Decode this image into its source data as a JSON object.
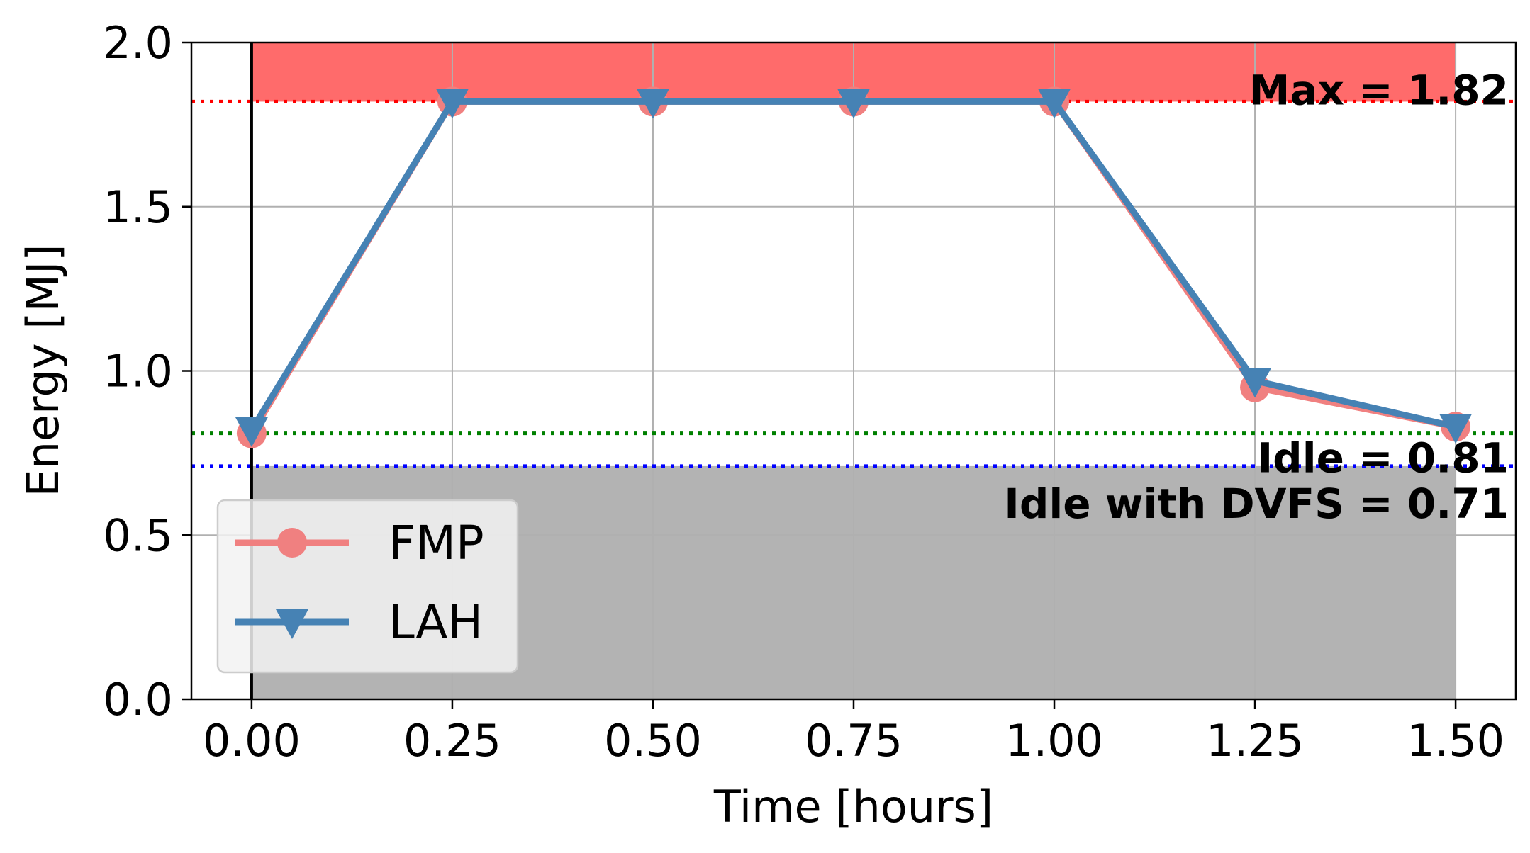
{
  "chart_data": {
    "type": "line",
    "title": "",
    "xlabel": "Time [hours]",
    "ylabel": "Energy [MJ]",
    "xlim": [
      -0.075,
      1.575
    ],
    "ylim": [
      0.0,
      2.0
    ],
    "xticks": [
      0.0,
      0.25,
      0.5,
      0.75,
      1.0,
      1.25,
      1.5
    ],
    "xtick_labels": [
      "0.00",
      "0.25",
      "0.50",
      "0.75",
      "1.00",
      "1.25",
      "1.50"
    ],
    "yticks": [
      0.0,
      0.5,
      1.0,
      1.5,
      2.0
    ],
    "ytick_labels": [
      "0.0",
      "0.5",
      "1.0",
      "1.5",
      "2.0"
    ],
    "grid": true,
    "legend_position": "lower-left",
    "x": [
      0.0,
      0.25,
      0.5,
      0.75,
      1.0,
      1.25,
      1.5
    ],
    "series": [
      {
        "name": "FMP",
        "values": [
          0.81,
          1.82,
          1.82,
          1.82,
          1.82,
          0.95,
          0.83
        ],
        "color": "#f08080",
        "marker": "circle"
      },
      {
        "name": "LAH",
        "values": [
          0.82,
          1.82,
          1.82,
          1.82,
          1.82,
          0.97,
          0.83
        ],
        "color": "#4682b4",
        "marker": "triangle-down"
      }
    ],
    "reference_lines": [
      {
        "label": "Max = 1.82",
        "value": 1.82,
        "color": "#ff0000",
        "style": "dotted"
      },
      {
        "label": "Idle = 0.81",
        "value": 0.81,
        "color": "#008000",
        "style": "dotted"
      },
      {
        "label": "Idle with DVFS = 0.71",
        "value": 0.71,
        "color": "#0000ff",
        "style": "dotted"
      }
    ],
    "shaded_regions": [
      {
        "x_range": [
          0.0,
          1.5
        ],
        "y_range": [
          1.82,
          2.0
        ],
        "color": "#ff6b6b"
      },
      {
        "x_range": [
          0.0,
          1.5
        ],
        "y_range": [
          0.0,
          0.71
        ],
        "color": "#b3b3b3"
      }
    ],
    "vertical_line": {
      "x": 0.0,
      "color": "#000000"
    }
  }
}
